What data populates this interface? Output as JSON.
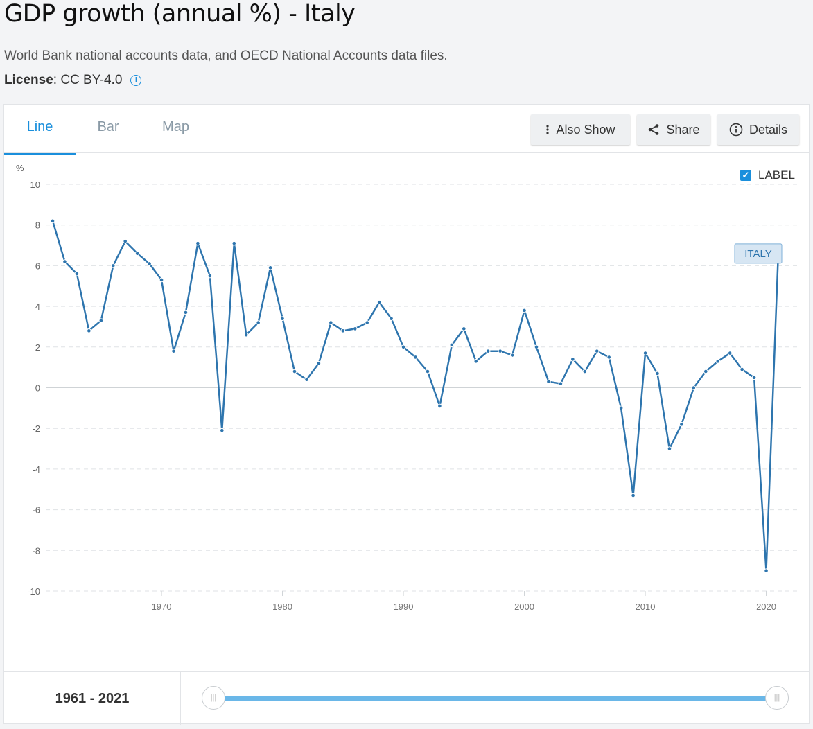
{
  "header": {
    "title": "GDP growth (annual %) - Italy",
    "subtitle": "World Bank national accounts data, and OECD National Accounts data files.",
    "license_label": "License",
    "license_value": " : CC BY-4.0",
    "info_glyph": "i"
  },
  "tabs": [
    {
      "label": "Line",
      "active": true
    },
    {
      "label": "Bar",
      "active": false
    },
    {
      "label": "Map",
      "active": false
    }
  ],
  "toolbar": {
    "also_show": "Also Show",
    "share": "Share",
    "details": "Details"
  },
  "label_toggle": {
    "label": "LABEL",
    "checked": true
  },
  "footer": {
    "range_text": "1961 - 2021",
    "range_start": 1961,
    "range_end": 2021
  },
  "colors": {
    "accent": "#1a8fdc",
    "line": "#2e75ae",
    "series_label_bg": "#d7e6f3"
  },
  "icons": {
    "also_show": "vertical-dots-icon",
    "share": "share-icon",
    "details": "info-icon",
    "license_info": "info-icon",
    "checkbox": "checkmark-icon",
    "slider_handle": "grip-icon"
  },
  "chart_data": {
    "type": "line",
    "title": "",
    "xlabel": "",
    "ylabel": "%",
    "xlim": [
      1961,
      2021
    ],
    "ylim": [
      -10,
      10
    ],
    "yticks": [
      10,
      8,
      6,
      4,
      2,
      0,
      -2,
      -4,
      -6,
      -8,
      -10
    ],
    "xticks": [
      1970,
      1980,
      1990,
      2000,
      2010,
      2020
    ],
    "grid": true,
    "series": [
      {
        "name": "ITALY",
        "x": [
          1961,
          1962,
          1963,
          1964,
          1965,
          1966,
          1967,
          1968,
          1969,
          1970,
          1971,
          1972,
          1973,
          1974,
          1975,
          1976,
          1977,
          1978,
          1979,
          1980,
          1981,
          1982,
          1983,
          1984,
          1985,
          1986,
          1987,
          1988,
          1989,
          1990,
          1991,
          1992,
          1993,
          1994,
          1995,
          1996,
          1997,
          1998,
          1999,
          2000,
          2001,
          2002,
          2003,
          2004,
          2005,
          2006,
          2007,
          2008,
          2009,
          2010,
          2011,
          2012,
          2013,
          2014,
          2015,
          2016,
          2017,
          2018,
          2019,
          2020,
          2021
        ],
        "values": [
          8.2,
          6.2,
          5.6,
          2.8,
          3.3,
          6.0,
          7.2,
          6.6,
          6.1,
          5.3,
          1.8,
          3.7,
          7.1,
          5.5,
          -2.1,
          7.1,
          2.6,
          3.2,
          5.9,
          3.4,
          0.8,
          0.4,
          1.2,
          3.2,
          2.8,
          2.9,
          3.2,
          4.2,
          3.4,
          2.0,
          1.5,
          0.8,
          -0.9,
          2.1,
          2.9,
          1.3,
          1.8,
          1.8,
          1.6,
          3.8,
          2.0,
          0.3,
          0.2,
          1.4,
          0.8,
          1.8,
          1.5,
          -1.0,
          -5.3,
          1.7,
          0.7,
          -3.0,
          -1.8,
          0.0,
          0.8,
          1.3,
          1.7,
          0.9,
          0.5,
          -9.0,
          6.7
        ]
      }
    ]
  }
}
